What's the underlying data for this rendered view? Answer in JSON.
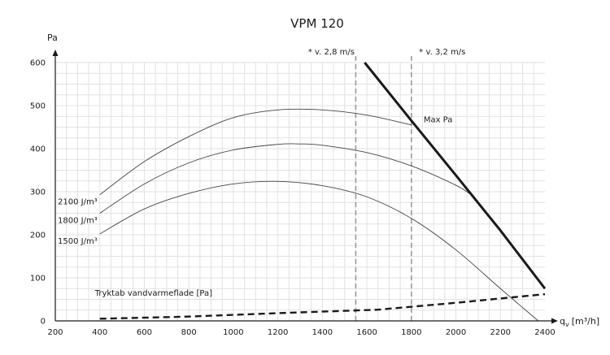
{
  "chart_data": {
    "type": "line",
    "title": "VPM 120",
    "ylabel": "Pa",
    "xlabel": "q",
    "xlabel_sub": "v",
    "xlabel_unit": "[m³/h]",
    "xlim": [
      200,
      2400
    ],
    "ylim": [
      0,
      600
    ],
    "x_ticks": [
      200,
      400,
      600,
      800,
      1000,
      1200,
      1400,
      1600,
      1800,
      2000,
      2200,
      2400
    ],
    "y_ticks": [
      0,
      100,
      200,
      300,
      400,
      500,
      600
    ],
    "grid": true,
    "series": [
      {
        "name": "2100 J/m³",
        "style": "thin",
        "x": [
          400,
          600,
          800,
          1000,
          1200,
          1400,
          1600,
          1800
        ],
        "y": [
          293,
          370,
          428,
          472,
          490,
          490,
          478,
          455
        ]
      },
      {
        "name": "1800 J/m³",
        "style": "thin",
        "x": [
          400,
          600,
          800,
          1000,
          1200,
          1300,
          1400,
          1600,
          1800,
          2000,
          2070
        ],
        "y": [
          250,
          318,
          367,
          397,
          410,
          411,
          408,
          391,
          360,
          315,
          292
        ]
      },
      {
        "name": "1500 J/m³",
        "style": "thin",
        "x": [
          400,
          600,
          800,
          1000,
          1200,
          1400,
          1600,
          1800,
          2000,
          2200,
          2370
        ],
        "y": [
          202,
          260,
          296,
          318,
          324,
          314,
          288,
          238,
          165,
          75,
          0
        ]
      },
      {
        "name": "Max Pa",
        "style": "thick",
        "x": [
          1590,
          1800,
          2000,
          2200,
          2400
        ],
        "y": [
          600,
          465,
          338,
          210,
          75
        ]
      },
      {
        "name": "Tryktab vandvarmeflade [Pa]",
        "style": "dashed",
        "x": [
          400,
          800,
          1200,
          1650,
          2000,
          2400
        ],
        "y": [
          5,
          10,
          18,
          26,
          42,
          62
        ]
      }
    ],
    "vlines": [
      {
        "x": 1550,
        "label": "* v. 2,8 m/s"
      },
      {
        "x": 1800,
        "label": "* v. 3,2 m/s"
      }
    ],
    "labels": {
      "max_pa": "Max Pa",
      "curve_2100": "2100 J/m³",
      "curve_1800": "1800 J/m³",
      "curve_1500": "1500 J/m³",
      "tryktab": "Tryktab vandvarmeflade [Pa]"
    },
    "colors": {
      "curve": "#444444",
      "axis": "#1a1a1a",
      "vline": "#9a9a9a",
      "grid": "#e2e2e2"
    }
  }
}
